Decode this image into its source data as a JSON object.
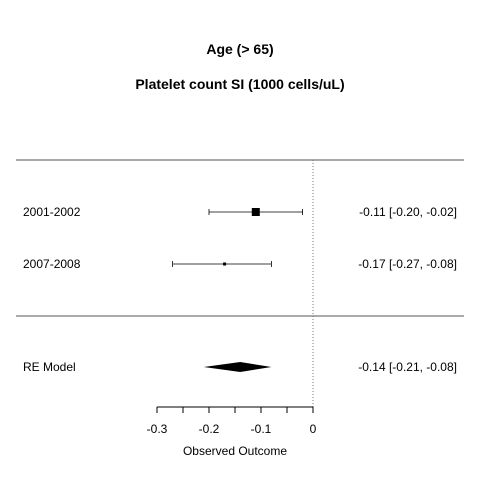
{
  "chart_data": {
    "type": "forest",
    "title": "Age (> 65)",
    "subtitle": "Platelet count SI (1000 cells/uL)",
    "xlabel": "Observed Outcome",
    "xlim": [
      -0.3,
      0
    ],
    "xticks": [
      -0.3,
      -0.2,
      -0.1,
      0
    ],
    "xtick_labels": [
      "-0.3",
      "-0.2",
      "-0.1",
      "0"
    ],
    "reference_line": 0,
    "studies": [
      {
        "label": "2001-2002",
        "estimate": -0.11,
        "ci_low": -0.2,
        "ci_high": -0.02,
        "text": "-0.11 [-0.20, -0.02]",
        "marker": "large-square"
      },
      {
        "label": "2007-2008",
        "estimate": -0.17,
        "ci_low": -0.27,
        "ci_high": -0.08,
        "text": "-0.17 [-0.27, -0.08]",
        "marker": "small-square"
      }
    ],
    "summary": {
      "label": "RE Model",
      "estimate": -0.14,
      "ci_low": -0.21,
      "ci_high": -0.08,
      "text": "-0.14 [-0.21, -0.08]"
    }
  }
}
